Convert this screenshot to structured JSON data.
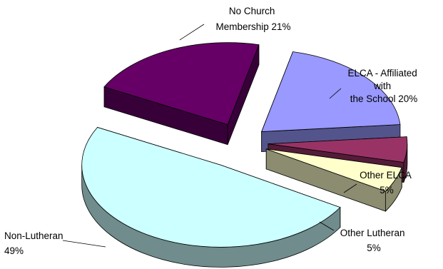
{
  "chart_data": {
    "type": "pie",
    "style": "3d-exploded",
    "slices": [
      {
        "label_lines": [
          "ELCA - Affiliated",
          "with",
          "the School 20%"
        ],
        "value": 20,
        "color": "#9999FF"
      },
      {
        "label_lines": [
          "Other ELCA",
          "5%"
        ],
        "value": 5,
        "color": "#993366"
      },
      {
        "label_lines": [
          "Other Lutheran",
          "5%"
        ],
        "value": 5,
        "color": "#FFFFCC"
      },
      {
        "label_lines": [
          "Non-Lutheran",
          "49%"
        ],
        "value": 49,
        "color": "#CCFFFF"
      },
      {
        "label_lines": [
          "No Church",
          "Membership 21%"
        ],
        "value": 21,
        "color": "#660066"
      }
    ]
  }
}
